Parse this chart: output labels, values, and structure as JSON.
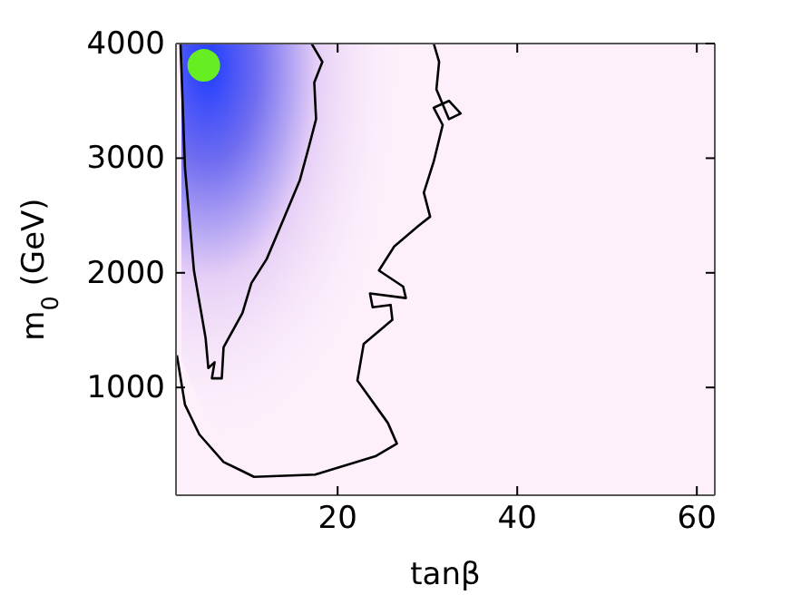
{
  "chart_data": {
    "type": "line",
    "xlabel": "tanβ",
    "ylabel": "m$_{0}$ (GeV)",
    "xlim": [
      2,
      62
    ],
    "ylim": [
      60,
      4000
    ],
    "xticks": [
      20,
      40,
      60
    ],
    "yticks": [
      1000,
      2000,
      3000,
      4000
    ],
    "grid": false,
    "line_style": "solid",
    "series": [
      {
        "color": "#000000",
        "marker": "none",
        "x": [
          17.1,
          18.3,
          17.4,
          17.6,
          16.8,
          15.8,
          14.1,
          12.1,
          10.4,
          9.4,
          7.3,
          7.1,
          6.0,
          6.3,
          5.6,
          5.3,
          4.0,
          3.0,
          2.5
        ],
        "values": [
          4000,
          3840,
          3660,
          3340,
          3100,
          2810,
          2490,
          2120,
          1910,
          1650,
          1350,
          1080,
          1080,
          1220,
          1170,
          1430,
          2020,
          2920,
          4000
        ]
      },
      {
        "color": "#000000",
        "marker": "none",
        "x": [
          2.1,
          3.0,
          4.6,
          7.3,
          10.7,
          17.5,
          24.2,
          26.6,
          25.6,
          22.2,
          22.9,
          26.1,
          25.9,
          23.9,
          23.6,
          27.6,
          27.3,
          24.6,
          26.3,
          29.0,
          30.3,
          29.6,
          30.7,
          31.7,
          30.7,
          32.4,
          33.7,
          32.4,
          31.0,
          31.3,
          30.7
        ],
        "values": [
          1280,
          850,
          590,
          350,
          220,
          240,
          400,
          510,
          690,
          1060,
          1380,
          1590,
          1720,
          1700,
          1820,
          1780,
          1880,
          2020,
          2230,
          2410,
          2490,
          2700,
          2970,
          3290,
          3440,
          3500,
          3390,
          3340,
          3600,
          3840,
          4000
        ]
      },
      {
        "type": "scatter",
        "color": "#66ee22",
        "marker": "circle",
        "x": [
          5.1
        ],
        "values": [
          3810
        ]
      }
    ]
  }
}
